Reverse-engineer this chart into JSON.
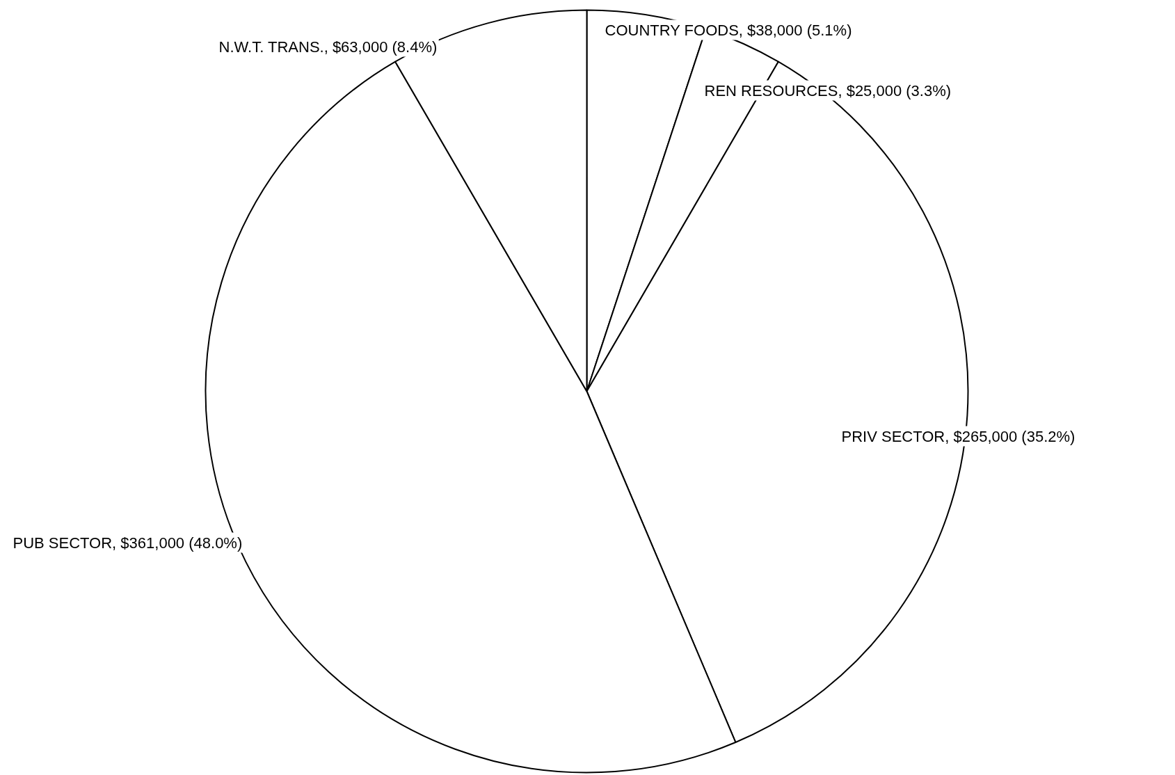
{
  "chart_data": {
    "type": "pie",
    "categories": [
      "COUNTRY FOODS",
      "REN RESOURCES",
      "PRIV SECTOR",
      "PUB SECTOR",
      "N.W.T. TRANS."
    ],
    "values": [
      38000,
      25000,
      265000,
      361000,
      63000
    ],
    "value_labels": [
      "$38,000 (5.1%)",
      "$25,000 (3.3%)",
      "$265,000 (35.2%)",
      "$361,000 (48.0%)",
      "$63,000 (8.4%)"
    ],
    "colors": [
      "#ffffff",
      "#ffffff",
      "#ffffff",
      "#ffffff",
      "#ffffff"
    ]
  }
}
